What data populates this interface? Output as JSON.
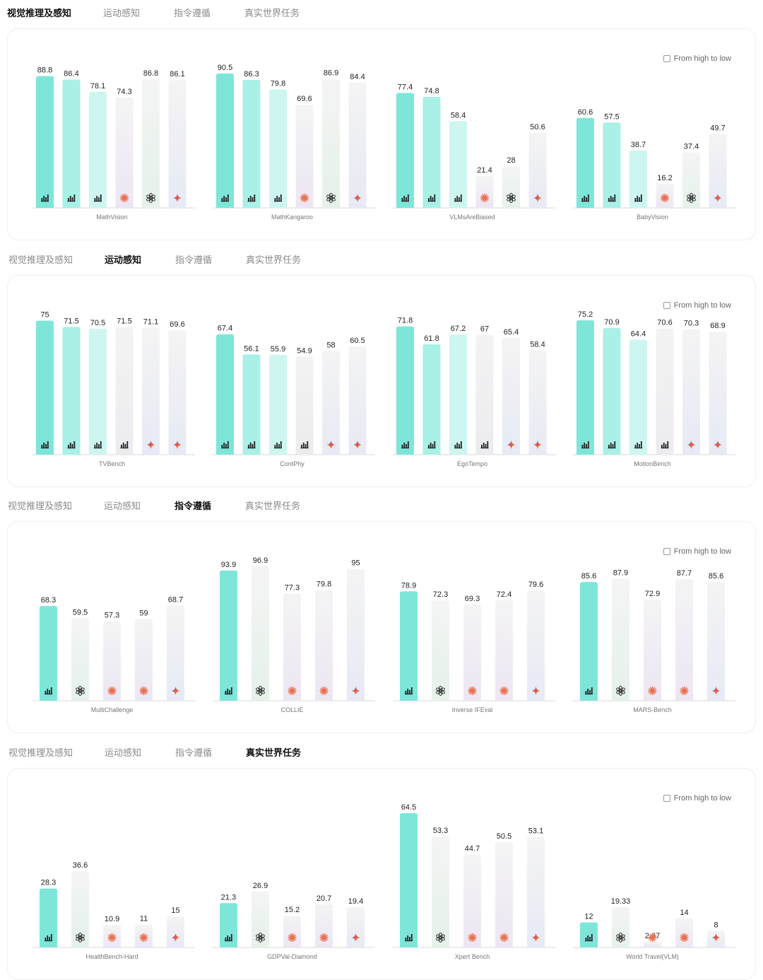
{
  "tabs": [
    "视觉推理及感知",
    "运动感知",
    "指令遵循",
    "真实世界任务"
  ],
  "sort_label": "From high to low",
  "colors": {
    "accent": "#7ee6d9",
    "accent_light": "#a9f0e7",
    "accent_lighter": "#cdf6f1",
    "grey_bar": "#f1f1f4",
    "axis": "#d9d9d9"
  },
  "chart_data": [
    {
      "type": "bar",
      "active_tab": 0,
      "groups": [
        {
          "name": "MathVision",
          "values": [
            88.8,
            86.4,
            78.1,
            74.3,
            86.8,
            86.1
          ],
          "icons": [
            "qwen-icon",
            "qwen-icon",
            "qwen-icon",
            "claude-icon",
            "openai-icon",
            "gemini-icon"
          ]
        },
        {
          "name": "MathKangaroo",
          "values": [
            90.5,
            86.3,
            79.8,
            69.6,
            86.9,
            84.4
          ],
          "icons": [
            "qwen-icon",
            "qwen-icon",
            "qwen-icon",
            "claude-icon",
            "openai-icon",
            "gemini-icon"
          ]
        },
        {
          "name": "VLMsAreBiased",
          "values": [
            77.4,
            74.8,
            58.4,
            21.4,
            28,
            50.6
          ],
          "icons": [
            "qwen-icon",
            "qwen-icon",
            "qwen-icon",
            "claude-icon",
            "openai-icon",
            "gemini-icon"
          ]
        },
        {
          "name": "BabyVision",
          "values": [
            60.6,
            57.5,
            38.7,
            16.2,
            37.4,
            49.7
          ],
          "icons": [
            "qwen-icon",
            "qwen-icon",
            "qwen-icon",
            "claude-icon",
            "openai-icon",
            "gemini-icon"
          ]
        }
      ]
    },
    {
      "type": "bar",
      "active_tab": 1,
      "groups": [
        {
          "name": "TVBench",
          "values": [
            75,
            71.5,
            70.5,
            71.5,
            71.1,
            69.6
          ],
          "icons": [
            "qwen-icon",
            "qwen-icon",
            "qwen-icon",
            "qwen-icon",
            "gemini-icon",
            "gemini-icon"
          ]
        },
        {
          "name": "ContPhy",
          "values": [
            67.4,
            56.1,
            55.9,
            54.9,
            58,
            60.5
          ],
          "icons": [
            "qwen-icon",
            "qwen-icon",
            "qwen-icon",
            "qwen-icon",
            "gemini-icon",
            "gemini-icon"
          ]
        },
        {
          "name": "EgoTempo",
          "values": [
            71.8,
            61.8,
            67.2,
            67,
            65.4,
            58.4
          ],
          "icons": [
            "qwen-icon",
            "qwen-icon",
            "qwen-icon",
            "qwen-icon",
            "gemini-icon",
            "gemini-icon"
          ]
        },
        {
          "name": "MotionBench",
          "values": [
            75.2,
            70.9,
            64.4,
            70.6,
            70.3,
            68.9
          ],
          "icons": [
            "qwen-icon",
            "qwen-icon",
            "qwen-icon",
            "qwen-icon",
            "gemini-icon",
            "gemini-icon"
          ]
        }
      ]
    },
    {
      "type": "bar",
      "active_tab": 2,
      "groups": [
        {
          "name": "MultiChallenge",
          "values": [
            68.3,
            59.5,
            57.3,
            59,
            68.7
          ],
          "icons": [
            "qwen-icon",
            "openai-icon",
            "claude-icon",
            "claude-icon",
            "gemini-icon"
          ]
        },
        {
          "name": "COLLIE",
          "values": [
            93.9,
            96.9,
            77.3,
            79.8,
            95
          ],
          "icons": [
            "qwen-icon",
            "openai-icon",
            "claude-icon",
            "claude-icon",
            "gemini-icon"
          ]
        },
        {
          "name": "Inverse IFEval",
          "values": [
            78.9,
            72.3,
            69.3,
            72.4,
            79.6
          ],
          "icons": [
            "qwen-icon",
            "openai-icon",
            "claude-icon",
            "claude-icon",
            "gemini-icon"
          ]
        },
        {
          "name": "MARS-Bench",
          "values": [
            85.6,
            87.9,
            72.9,
            87.7,
            85.6
          ],
          "icons": [
            "qwen-icon",
            "openai-icon",
            "claude-icon",
            "claude-icon",
            "gemini-icon"
          ]
        }
      ]
    },
    {
      "type": "bar",
      "active_tab": 3,
      "groups": [
        {
          "name": "HealthBench-Hard",
          "values": [
            28.3,
            36.6,
            10.9,
            11,
            15
          ],
          "icons": [
            "qwen-icon",
            "openai-icon",
            "claude-icon",
            "claude-icon",
            "gemini-icon"
          ]
        },
        {
          "name": "GDPVal-Diamond",
          "values": [
            21.3,
            26.9,
            15.2,
            20.7,
            19.4
          ],
          "icons": [
            "qwen-icon",
            "openai-icon",
            "claude-icon",
            "claude-icon",
            "gemini-icon"
          ]
        },
        {
          "name": "Xpert Bench",
          "values": [
            64.5,
            53.3,
            44.7,
            50.5,
            53.1
          ],
          "icons": [
            "qwen-icon",
            "openai-icon",
            "claude-icon",
            "claude-icon",
            "gemini-icon"
          ]
        },
        {
          "name": "World Travel(VLM)",
          "values": [
            12,
            19.33,
            2.67,
            14,
            8
          ],
          "icons": [
            "qwen-icon",
            "openai-icon",
            "claude-icon",
            "claude-icon",
            "gemini-icon"
          ]
        }
      ]
    }
  ]
}
